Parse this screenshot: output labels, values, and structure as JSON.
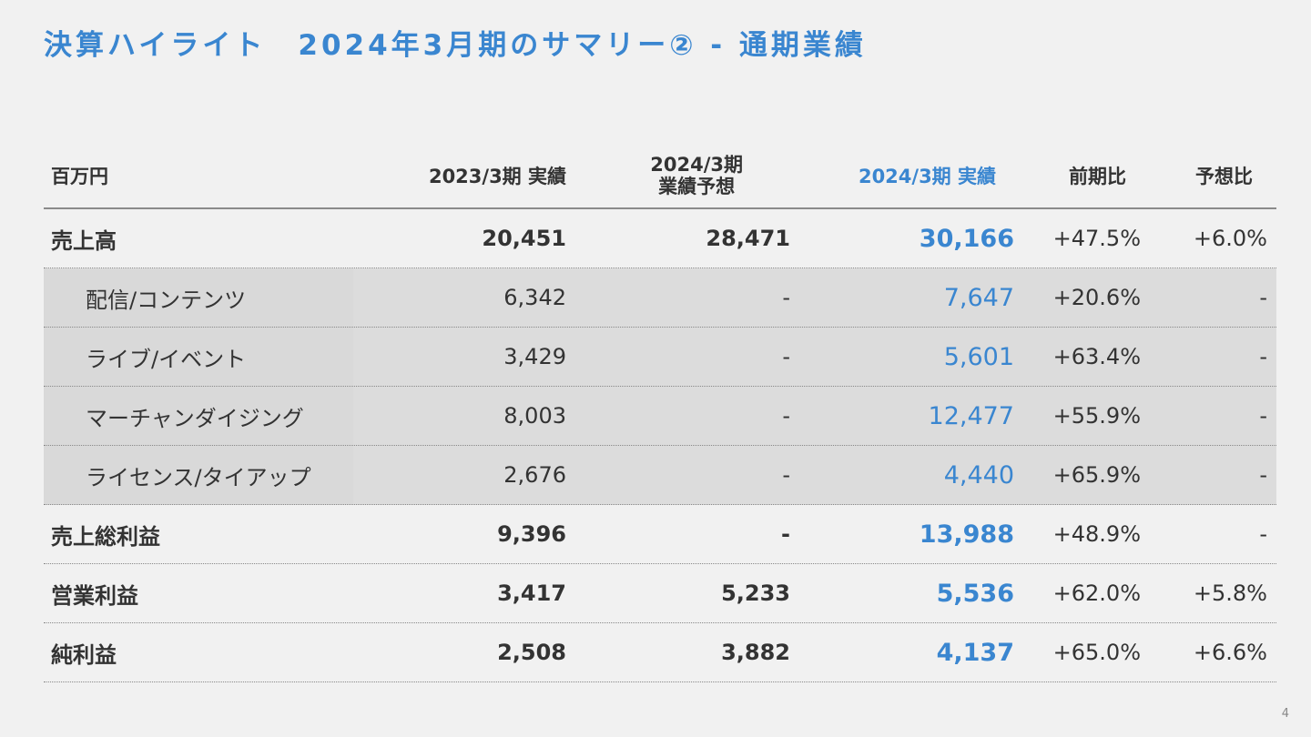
{
  "title": "決算ハイライト　2024年3月期のサマリー② - 通期業績",
  "header": {
    "unit": "百万円",
    "col1": "2023/3期 実績",
    "col2_line1": "2024/3期",
    "col2_line2": "業績予想",
    "col3": "2024/3期 実績",
    "col4": "前期比",
    "col5": "予想比"
  },
  "rows": [
    {
      "label": "売上高",
      "prev": "20,451",
      "forecast": "28,471",
      "actual": "30,166",
      "yoy": "+47.5%",
      "vs_forecast": "+6.0%"
    },
    {
      "label": "配信/コンテンツ",
      "prev": "6,342",
      "forecast": "-",
      "actual": "7,647",
      "yoy": "+20.6%",
      "vs_forecast": "-"
    },
    {
      "label": "ライブ/イベント",
      "prev": "3,429",
      "forecast": "-",
      "actual": "5,601",
      "yoy": "+63.4%",
      "vs_forecast": "-"
    },
    {
      "label": "マーチャンダイジング",
      "prev": "8,003",
      "forecast": "-",
      "actual": "12,477",
      "yoy": "+55.9%",
      "vs_forecast": "-"
    },
    {
      "label": "ライセンス/タイアップ",
      "prev": "2,676",
      "forecast": "-",
      "actual": "4,440",
      "yoy": "+65.9%",
      "vs_forecast": "-"
    },
    {
      "label": "売上総利益",
      "prev": "9,396",
      "forecast": "-",
      "actual": "13,988",
      "yoy": "+48.9%",
      "vs_forecast": "-"
    },
    {
      "label": "営業利益",
      "prev": "3,417",
      "forecast": "5,233",
      "actual": "5,536",
      "yoy": "+62.0%",
      "vs_forecast": "+5.8%"
    },
    {
      "label": "純利益",
      "prev": "2,508",
      "forecast": "3,882",
      "actual": "4,137",
      "yoy": "+65.0%",
      "vs_forecast": "+6.6%"
    }
  ],
  "page_number": "4",
  "colors": {
    "accent": "#3a86d0",
    "subrow_bg": "#d9d9d9",
    "background": "#f1f1f1"
  }
}
